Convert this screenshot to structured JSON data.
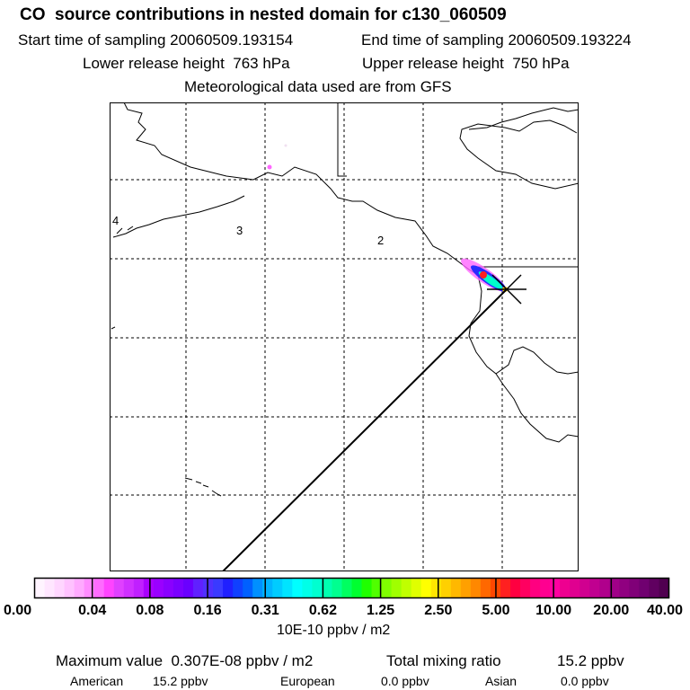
{
  "header": {
    "title": "CO  source contributions in nested domain for c130_060509",
    "start_time": "Start time of sampling 20060509.193154",
    "end_time": "End time of sampling 20060509.193224",
    "lower_release": "Lower release height  763 hPa",
    "upper_release": "Upper release height  750 hPa",
    "met_data": "Meteorological data used are from GFS"
  },
  "map": {
    "day_labels": [
      "4",
      "3",
      "2"
    ],
    "border_color": "#000000",
    "grid_style": "dashed"
  },
  "colorbar": {
    "tick_labels": [
      "0.00",
      "0.04",
      "0.08",
      "0.16",
      "0.31",
      "0.62",
      "1.25",
      "2.50",
      "5.00",
      "10.00",
      "20.00",
      "40.00"
    ],
    "colors": [
      "#fff4ff",
      "#ffe6ff",
      "#ffd6ff",
      "#ffc2ff",
      "#ffaaff",
      "#ff8cff",
      "#ff6bff",
      "#ff44ff",
      "#e040ff",
      "#d030ff",
      "#c020ff",
      "#aa00ff",
      "#9a00ff",
      "#8a00ff",
      "#7a00ff",
      "#6a00ff",
      "#6020ff",
      "#5030ff",
      "#3a3aff",
      "#2020ff",
      "#1040ff",
      "#0060ff",
      "#0090ff",
      "#00b4ff",
      "#00ccff",
      "#00e4ff",
      "#00ffff",
      "#00ffe8",
      "#00ffd0",
      "#00ffb0",
      "#00ff90",
      "#00ff60",
      "#00ff30",
      "#20ff00",
      "#50ff00",
      "#80ff00",
      "#a0ff00",
      "#c0ff00",
      "#e0ff00",
      "#ffff00",
      "#ffe600",
      "#ffd000",
      "#ffb800",
      "#ffa000",
      "#ff8800",
      "#ff6800",
      "#ff4800",
      "#ff2020",
      "#ff0040",
      "#ff0060",
      "#ff0080",
      "#ff0090",
      "#ff00a0",
      "#ee0090",
      "#e00090",
      "#d00090",
      "#c00090",
      "#b0008c",
      "#a00088",
      "#900080",
      "#800078",
      "#700070",
      "#600060",
      "#500050"
    ],
    "units": "10E-10 ppbv / m2"
  },
  "chart_data": {
    "type": "heatmap",
    "title": "CO  source contributions in nested domain for c130_060509",
    "units": "10E-10 ppbv / m2",
    "color_levels": [
      0.0,
      0.04,
      0.08,
      0.16,
      0.31,
      0.62,
      1.25,
      2.5,
      5.0,
      10.0,
      20.0,
      40.0
    ],
    "maximum_value": "0.307E-08 ppbv / m2",
    "grid": true
  },
  "summary": {
    "max_label": "Maximum value  0.307E-08 ppbv / m2",
    "total_label": "Total mixing ratio",
    "total_value": "15.2 ppbv",
    "sources": [
      {
        "name": "American",
        "value": "15.2 ppbv"
      },
      {
        "name": "European",
        "value": "0.0 ppbv"
      },
      {
        "name": "Asian",
        "value": "0.0 ppbv"
      }
    ]
  }
}
